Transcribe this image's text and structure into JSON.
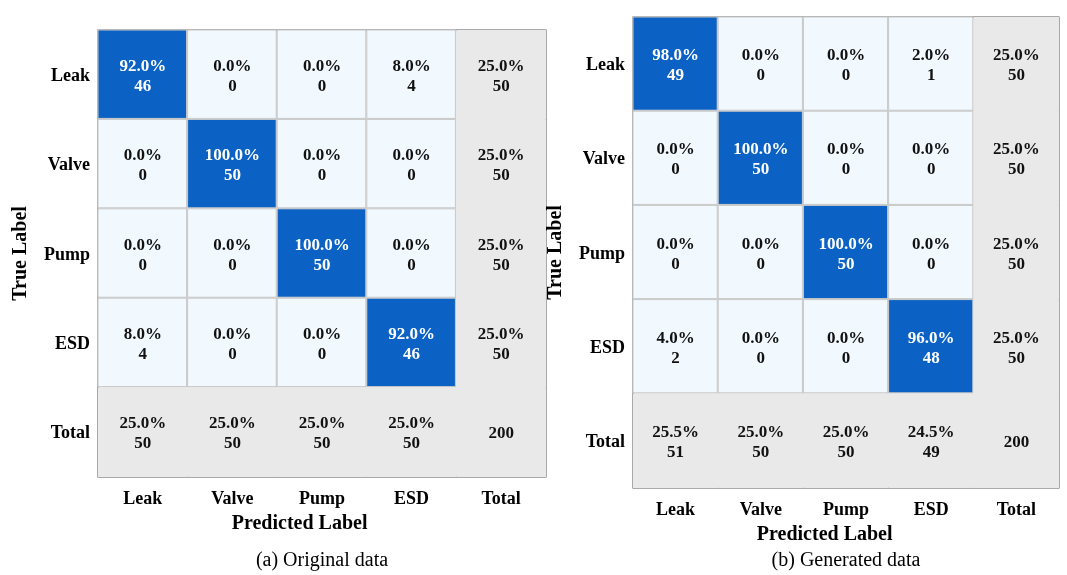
{
  "chart_data": [
    {
      "type": "heatmap",
      "xlabel": "Predicted Label",
      "ylabel": "True Label",
      "data_labels": true,
      "categories": [
        "Leak",
        "Valve",
        "Pump",
        "ESD",
        "Total"
      ],
      "y_categories": [
        "Leak",
        "Valve",
        "Pump",
        "ESD",
        "Total"
      ],
      "cells": [
        [
          46,
          0,
          0,
          4,
          50
        ],
        [
          0,
          50,
          0,
          0,
          50
        ],
        [
          0,
          0,
          50,
          0,
          50
        ],
        [
          4,
          0,
          0,
          46,
          50
        ],
        [
          50,
          50,
          50,
          50,
          200
        ]
      ],
      "annotations": [
        "(a) Original data",
        "92.0%",
        "0.0%",
        "0.0%",
        "8.0%",
        "25.0%",
        "0.0%",
        "100.0%",
        "0.0%",
        "0.0%",
        "25.0%",
        "0.0%",
        "0.0%",
        "100.0%",
        "0.0%",
        "25.0%",
        "8.0%",
        "0.0%",
        "0.0%",
        "92.0%",
        "25.0%",
        "25.0%",
        "25.0%",
        "25.0%",
        "25.0%"
      ]
    },
    {
      "type": "heatmap",
      "xlabel": "Predicted Label",
      "ylabel": "True Label",
      "data_labels": true,
      "categories": [
        "Leak",
        "Valve",
        "Pump",
        "ESD",
        "Total"
      ],
      "y_categories": [
        "Leak",
        "Valve",
        "Pump",
        "ESD",
        "Total"
      ],
      "cells": [
        [
          49,
          0,
          0,
          1,
          50
        ],
        [
          0,
          50,
          0,
          0,
          50
        ],
        [
          0,
          0,
          50,
          0,
          50
        ],
        [
          2,
          0,
          0,
          48,
          50
        ],
        [
          51,
          50,
          50,
          49,
          200
        ]
      ],
      "annotations": [
        "(b) Generated data",
        "98.0%",
        "0.0%",
        "0.0%",
        "2.0%",
        "25.0%",
        "0.0%",
        "100.0%",
        "0.0%",
        "0.0%",
        "25.0%",
        "0.0%",
        "0.0%",
        "100.0%",
        "0.0%",
        "25.0%",
        "4.0%",
        "0.0%",
        "0.0%",
        "96.0%",
        "25.0%",
        "25.5%",
        "25.0%",
        "25.0%",
        "24.5%"
      ]
    }
  ]
}
